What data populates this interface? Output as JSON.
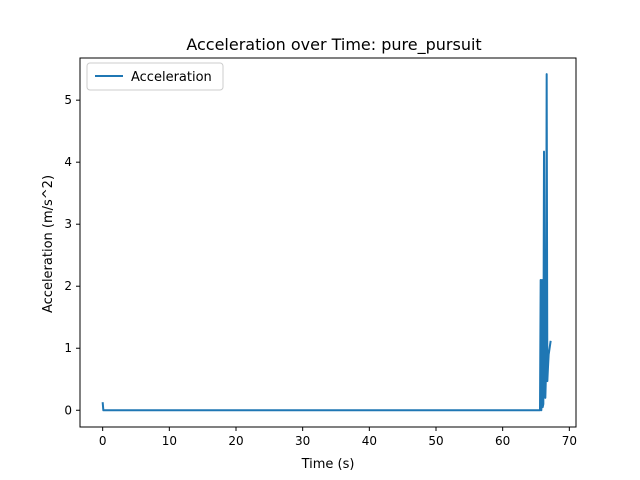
{
  "chart_data": {
    "type": "line",
    "title": "Acceleration over Time: pure_pursuit",
    "xlabel": "Time (s)",
    "ylabel": "Acceleration (m/s^2)",
    "xlim": [
      -3.4,
      71.0
    ],
    "ylim": [
      -0.27,
      5.68
    ],
    "xticks": [
      0,
      10,
      20,
      30,
      40,
      50,
      60,
      70
    ],
    "yticks": [
      0,
      1,
      2,
      3,
      4,
      5
    ],
    "grid": false,
    "legend": {
      "position": "top-left",
      "entries": [
        "Acceleration"
      ]
    },
    "series": [
      {
        "name": "Acceleration",
        "color": "#1f77b4",
        "points": [
          [
            0.0,
            0.13
          ],
          [
            0.1,
            0.0
          ],
          [
            65.6,
            0.0
          ],
          [
            65.7,
            2.1
          ],
          [
            65.8,
            0.0
          ],
          [
            65.9,
            2.1
          ],
          [
            66.0,
            0.05
          ],
          [
            66.1,
            0.1
          ],
          [
            66.2,
            4.17
          ],
          [
            66.3,
            0.3
          ],
          [
            66.4,
            0.2
          ],
          [
            66.5,
            0.6
          ],
          [
            66.6,
            5.42
          ],
          [
            66.7,
            0.47
          ],
          [
            66.8,
            0.7
          ],
          [
            66.9,
            0.9
          ],
          [
            67.2,
            1.12
          ]
        ]
      }
    ]
  }
}
